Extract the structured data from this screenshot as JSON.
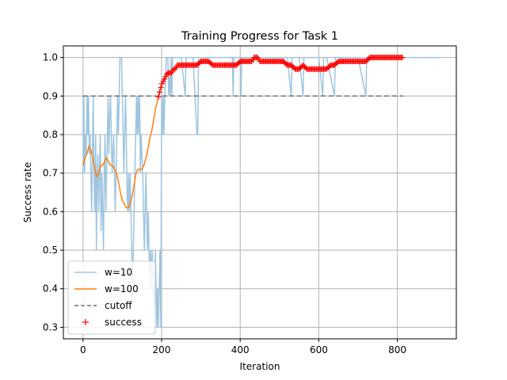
{
  "chart_data": {
    "type": "line",
    "title": "Training Progress for Task 1",
    "xlabel": "Iteration",
    "ylabel": "Success rate",
    "xlim": [
      -50,
      950
    ],
    "ylim": [
      0.27,
      1.03
    ],
    "xticks": [
      0,
      200,
      400,
      600,
      800
    ],
    "yticks": [
      0.3,
      0.4,
      0.5,
      0.6,
      0.7,
      0.8,
      0.9,
      1.0
    ],
    "xtick_labels": [
      "0",
      "200",
      "400",
      "600",
      "800"
    ],
    "ytick_labels": [
      "0.3",
      "0.4",
      "0.5",
      "0.6",
      "0.7",
      "0.8",
      "0.9",
      "1.0"
    ],
    "grid": true,
    "legend_position": "lower-left",
    "legend": [
      "w=10",
      "w=100",
      "cutoff",
      "success"
    ],
    "colors": {
      "w10": "#9ec5e0",
      "w100": "#ff7f0e",
      "cutoff": "#707070",
      "success": "#ff0000",
      "grid": "#b0b0b0"
    },
    "series": [
      {
        "name": "w=10",
        "style": "line",
        "points": [
          [
            0,
            0.7
          ],
          [
            2,
            0.9
          ],
          [
            4,
            0.7
          ],
          [
            6,
            0.8
          ],
          [
            8,
            0.75
          ],
          [
            10,
            0.9
          ],
          [
            12,
            0.8
          ],
          [
            14,
            0.9
          ],
          [
            16,
            0.75
          ],
          [
            18,
            0.8
          ],
          [
            20,
            0.7
          ],
          [
            22,
            0.6
          ],
          [
            24,
            0.75
          ],
          [
            26,
            0.9
          ],
          [
            28,
            0.7
          ],
          [
            30,
            0.6
          ],
          [
            32,
            0.8
          ],
          [
            34,
            0.5
          ],
          [
            36,
            0.7
          ],
          [
            38,
            0.75
          ],
          [
            40,
            0.6
          ],
          [
            42,
            0.7
          ],
          [
            44,
            0.8
          ],
          [
            46,
            0.55
          ],
          [
            48,
            0.7
          ],
          [
            50,
            0.6
          ],
          [
            52,
            0.5
          ],
          [
            54,
            0.7
          ],
          [
            56,
            0.8
          ],
          [
            58,
            0.6
          ],
          [
            60,
            0.7
          ],
          [
            62,
            0.8
          ],
          [
            64,
            0.9
          ],
          [
            66,
            0.75
          ],
          [
            68,
            0.85
          ],
          [
            70,
            0.9
          ],
          [
            72,
            0.8
          ],
          [
            74,
            0.7
          ],
          [
            76,
            0.75
          ],
          [
            78,
            0.8
          ],
          [
            80,
            0.7
          ],
          [
            82,
            0.6
          ],
          [
            84,
            0.7
          ],
          [
            86,
            0.8
          ],
          [
            88,
            0.9
          ],
          [
            90,
            0.8
          ],
          [
            92,
            0.9
          ],
          [
            94,
            1.0
          ],
          [
            96,
            1.0
          ],
          [
            98,
            1.0
          ],
          [
            100,
            0.9
          ],
          [
            102,
            0.8
          ],
          [
            104,
            0.7
          ],
          [
            106,
            0.8
          ],
          [
            108,
            0.9
          ],
          [
            110,
            0.8
          ],
          [
            112,
            0.65
          ],
          [
            114,
            0.6
          ],
          [
            116,
            0.7
          ],
          [
            118,
            0.6
          ],
          [
            120,
            0.7
          ],
          [
            122,
            0.6
          ],
          [
            124,
            0.5
          ],
          [
            126,
            0.4
          ],
          [
            128,
            0.5
          ],
          [
            130,
            0.6
          ],
          [
            132,
            0.7
          ],
          [
            134,
            0.8
          ],
          [
            136,
            0.9
          ],
          [
            138,
            0.8
          ],
          [
            140,
            0.9
          ],
          [
            142,
            0.8
          ],
          [
            144,
            0.9
          ],
          [
            146,
            0.7
          ],
          [
            148,
            0.8
          ],
          [
            150,
            0.75
          ],
          [
            152,
            0.7
          ],
          [
            154,
            0.6
          ],
          [
            156,
            0.5
          ],
          [
            158,
            0.6
          ],
          [
            160,
            0.7
          ],
          [
            162,
            0.6
          ],
          [
            164,
            0.5
          ],
          [
            166,
            0.6
          ],
          [
            168,
            0.5
          ],
          [
            170,
            0.4
          ],
          [
            172,
            0.5
          ],
          [
            174,
            0.4
          ],
          [
            176,
            0.5
          ],
          [
            178,
            0.4
          ],
          [
            180,
            0.35
          ],
          [
            182,
            0.4
          ],
          [
            184,
            0.5
          ],
          [
            186,
            0.4
          ],
          [
            188,
            0.3
          ],
          [
            190,
            0.4
          ],
          [
            192,
            0.3
          ],
          [
            194,
            0.4
          ],
          [
            196,
            0.5
          ],
          [
            198,
            0.3
          ],
          [
            200,
            0.9
          ],
          [
            202,
            0.8
          ],
          [
            204,
            0.9
          ],
          [
            206,
            0.8
          ],
          [
            208,
            0.9
          ],
          [
            210,
            0.95
          ],
          [
            212,
            1.0
          ],
          [
            214,
            1.0
          ],
          [
            216,
            1.0
          ],
          [
            218,
            0.9
          ],
          [
            220,
            0.95
          ],
          [
            222,
            0.9
          ],
          [
            224,
            1.0
          ],
          [
            226,
            0.9
          ],
          [
            228,
            1.0
          ],
          [
            230,
            1.0
          ],
          [
            240,
            1.0
          ],
          [
            250,
            1.0
          ],
          [
            260,
            0.9
          ],
          [
            262,
            1.0
          ],
          [
            270,
            1.0
          ],
          [
            280,
            1.0
          ],
          [
            290,
            0.8
          ],
          [
            292,
            0.8
          ],
          [
            294,
            1.0
          ],
          [
            300,
            1.0
          ],
          [
            320,
            1.0
          ],
          [
            340,
            1.0
          ],
          [
            360,
            1.0
          ],
          [
            380,
            1.0
          ],
          [
            382,
            0.9
          ],
          [
            384,
            1.0
          ],
          [
            400,
            1.0
          ],
          [
            402,
            0.9
          ],
          [
            404,
            1.0
          ],
          [
            420,
            1.0
          ],
          [
            440,
            1.0
          ],
          [
            460,
            1.0
          ],
          [
            480,
            1.0
          ],
          [
            500,
            1.0
          ],
          [
            520,
            1.0
          ],
          [
            530,
            0.9
          ],
          [
            532,
            1.0
          ],
          [
            550,
            1.0
          ],
          [
            560,
            0.9
          ],
          [
            562,
            1.0
          ],
          [
            580,
            1.0
          ],
          [
            600,
            1.0
          ],
          [
            610,
            0.9
          ],
          [
            612,
            1.0
          ],
          [
            620,
            1.0
          ],
          [
            640,
            0.9
          ],
          [
            642,
            1.0
          ],
          [
            660,
            1.0
          ],
          [
            700,
            1.0
          ],
          [
            720,
            0.9
          ],
          [
            722,
            1.0
          ],
          [
            740,
            1.0
          ],
          [
            780,
            1.0
          ],
          [
            800,
            1.0
          ],
          [
            850,
            1.0
          ],
          [
            906,
            1.0
          ]
        ]
      },
      {
        "name": "w=100",
        "style": "line",
        "points": [
          [
            0,
            0.72
          ],
          [
            5,
            0.74
          ],
          [
            10,
            0.75
          ],
          [
            15,
            0.77
          ],
          [
            20,
            0.76
          ],
          [
            25,
            0.74
          ],
          [
            30,
            0.71
          ],
          [
            35,
            0.69
          ],
          [
            40,
            0.7
          ],
          [
            45,
            0.72
          ],
          [
            50,
            0.72
          ],
          [
            55,
            0.73
          ],
          [
            60,
            0.74
          ],
          [
            65,
            0.73
          ],
          [
            70,
            0.72
          ],
          [
            75,
            0.72
          ],
          [
            80,
            0.71
          ],
          [
            85,
            0.7
          ],
          [
            90,
            0.68
          ],
          [
            95,
            0.65
          ],
          [
            100,
            0.63
          ],
          [
            105,
            0.62
          ],
          [
            110,
            0.61
          ],
          [
            115,
            0.61
          ],
          [
            120,
            0.62
          ],
          [
            125,
            0.64
          ],
          [
            130,
            0.67
          ],
          [
            135,
            0.7
          ],
          [
            140,
            0.71
          ],
          [
            145,
            0.71
          ],
          [
            150,
            0.71
          ],
          [
            155,
            0.72
          ],
          [
            160,
            0.74
          ],
          [
            165,
            0.76
          ],
          [
            170,
            0.79
          ],
          [
            175,
            0.81
          ],
          [
            180,
            0.84
          ],
          [
            185,
            0.87
          ],
          [
            190,
            0.89
          ],
          [
            195,
            0.91
          ],
          [
            200,
            0.93
          ],
          [
            205,
            0.94
          ],
          [
            210,
            0.95
          ],
          [
            215,
            0.96
          ],
          [
            220,
            0.96
          ],
          [
            225,
            0.96
          ],
          [
            230,
            0.97
          ],
          [
            235,
            0.97
          ],
          [
            240,
            0.98
          ],
          [
            250,
            0.98
          ],
          [
            260,
            0.98
          ],
          [
            270,
            0.98
          ],
          [
            280,
            0.98
          ],
          [
            290,
            0.98
          ],
          [
            300,
            0.99
          ],
          [
            310,
            0.99
          ],
          [
            320,
            0.99
          ],
          [
            330,
            0.98
          ],
          [
            340,
            0.98
          ],
          [
            350,
            0.98
          ],
          [
            360,
            0.98
          ],
          [
            370,
            0.98
          ],
          [
            380,
            0.98
          ],
          [
            390,
            0.98
          ],
          [
            400,
            0.99
          ],
          [
            410,
            0.99
          ],
          [
            420,
            0.99
          ],
          [
            430,
            0.99
          ],
          [
            435,
            1.0
          ],
          [
            440,
            1.0
          ],
          [
            445,
            1.0
          ],
          [
            450,
            0.99
          ],
          [
            460,
            0.99
          ],
          [
            470,
            0.99
          ],
          [
            480,
            0.99
          ],
          [
            490,
            0.99
          ],
          [
            500,
            0.99
          ],
          [
            510,
            0.99
          ],
          [
            520,
            0.98
          ],
          [
            530,
            0.98
          ],
          [
            540,
            0.97
          ],
          [
            550,
            0.97
          ],
          [
            560,
            0.98
          ],
          [
            570,
            0.97
          ],
          [
            580,
            0.97
          ],
          [
            590,
            0.97
          ],
          [
            600,
            0.97
          ],
          [
            610,
            0.97
          ],
          [
            620,
            0.97
          ],
          [
            630,
            0.98
          ],
          [
            640,
            0.98
          ],
          [
            650,
            0.99
          ],
          [
            660,
            0.99
          ],
          [
            670,
            0.99
          ],
          [
            680,
            0.99
          ],
          [
            690,
            0.99
          ],
          [
            700,
            0.99
          ],
          [
            710,
            0.99
          ],
          [
            720,
            0.99
          ],
          [
            730,
            1.0
          ],
          [
            740,
            1.0
          ],
          [
            760,
            1.0
          ],
          [
            780,
            1.0
          ],
          [
            800,
            1.0
          ],
          [
            815,
            1.0
          ]
        ]
      },
      {
        "name": "cutoff",
        "style": "dashed",
        "points": [
          [
            0,
            0.9
          ],
          [
            815,
            0.9
          ]
        ]
      }
    ],
    "success_points": {
      "name": "success",
      "style": "marker-plus",
      "x_start": 192,
      "x_end": 815,
      "step": 3,
      "note_source": "w=100"
    }
  }
}
